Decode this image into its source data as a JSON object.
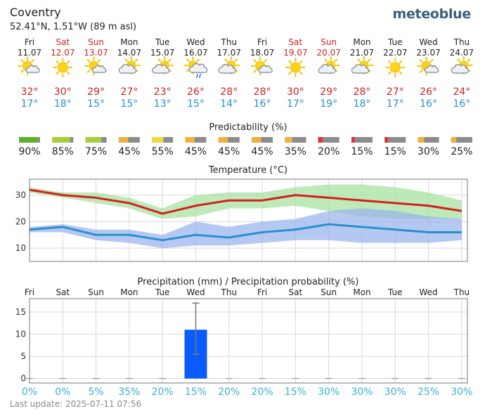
{
  "header": {
    "location": "Coventry",
    "coords": "52.41°N, 1.51°W (89 m asl)",
    "brand": "meteoblue"
  },
  "colors": {
    "weekday": "#222222",
    "weekend": "#cc2222",
    "tmax": "#d32020",
    "tmin": "#2a8fd0",
    "precip_bar": "#0a5cff",
    "prob_text": "#3aaed8"
  },
  "days": [
    {
      "name": "Fri",
      "date": "11.07",
      "weekend": false,
      "icon": "sun-cloud-icon",
      "tmax": "32°",
      "tmin": "17°"
    },
    {
      "name": "Sat",
      "date": "12.07",
      "weekend": true,
      "icon": "sun-icon",
      "tmax": "30°",
      "tmin": "18°"
    },
    {
      "name": "Sun",
      "date": "13.07",
      "weekend": true,
      "icon": "sun-cloud-icon",
      "tmax": "29°",
      "tmin": "15°"
    },
    {
      "name": "Mon",
      "date": "14.07",
      "weekend": false,
      "icon": "cloud-sun-icon",
      "tmax": "27°",
      "tmin": "15°"
    },
    {
      "name": "Tue",
      "date": "15.07",
      "weekend": false,
      "icon": "cloud-sun-icon",
      "tmax": "23°",
      "tmin": "13°"
    },
    {
      "name": "Wed",
      "date": "16.07",
      "weekend": false,
      "icon": "sun-cloud-rain-icon",
      "tmax": "26°",
      "tmin": "15°"
    },
    {
      "name": "Thu",
      "date": "17.07",
      "weekend": false,
      "icon": "cloud-sun-icon",
      "tmax": "28°",
      "tmin": "14°"
    },
    {
      "name": "Fri",
      "date": "18.07",
      "weekend": false,
      "icon": "sun-cloud-icon",
      "tmax": "28°",
      "tmin": "16°"
    },
    {
      "name": "Sat",
      "date": "19.07",
      "weekend": true,
      "icon": "sun-icon",
      "tmax": "30°",
      "tmin": "17°"
    },
    {
      "name": "Sun",
      "date": "20.07",
      "weekend": true,
      "icon": "cloud-sun-icon",
      "tmax": "29°",
      "tmin": "19°"
    },
    {
      "name": "Mon",
      "date": "21.07",
      "weekend": false,
      "icon": "cloud-sun-icon",
      "tmax": "28°",
      "tmin": "18°"
    },
    {
      "name": "Tue",
      "date": "22.07",
      "weekend": false,
      "icon": "sun-icon",
      "tmax": "27°",
      "tmin": "17°"
    },
    {
      "name": "Wed",
      "date": "23.07",
      "weekend": false,
      "icon": "sun-cloud-icon",
      "tmax": "26°",
      "tmin": "16°"
    },
    {
      "name": "Thu",
      "date": "24.07",
      "weekend": false,
      "icon": "cloud-sun-icon",
      "tmax": "24°",
      "tmin": "16°"
    }
  ],
  "predictability": {
    "title": "Predictability (%)",
    "values": [
      90,
      85,
      75,
      45,
      55,
      45,
      45,
      45,
      35,
      20,
      15,
      15,
      30,
      25
    ],
    "labels": [
      "90%",
      "85%",
      "75%",
      "45%",
      "55%",
      "45%",
      "45%",
      "45%",
      "35%",
      "20%",
      "15%",
      "15%",
      "30%",
      "25%"
    ],
    "colors": [
      "#5faf2a",
      "#a8cc3a",
      "#a8cc3a",
      "#f0b040",
      "#f0d840",
      "#f0b040",
      "#f0b040",
      "#f0b040",
      "#f0b040",
      "#e03030",
      "#e03030",
      "#e03030",
      "#f0b040",
      "#f0b040"
    ]
  },
  "chart_data": [
    {
      "type": "line",
      "title": "Temperature (°C)",
      "x": [
        "Fri",
        "Sat",
        "Sun",
        "Mon",
        "Tue",
        "Wed",
        "Thu",
        "Fri",
        "Sat",
        "Sun",
        "Mon",
        "Tue",
        "Wed",
        "Thu"
      ],
      "ylim": [
        5,
        36
      ],
      "yticks": [
        10,
        20,
        30
      ],
      "grid": true,
      "series": [
        {
          "values": [
            32,
            30,
            29,
            27,
            23,
            26,
            28,
            28,
            30,
            29,
            28,
            27,
            26,
            24
          ],
          "color": "#d32020"
        },
        {
          "values": [
            17,
            18,
            15,
            15,
            13,
            15,
            14,
            16,
            17,
            19,
            18,
            17,
            16,
            16
          ],
          "color": "#2a8fd0"
        }
      ],
      "bands": [
        {
          "color": "#a8e2a0",
          "upper": [
            33,
            31,
            31,
            29,
            25,
            30,
            31,
            31,
            33,
            34,
            34,
            33,
            31,
            28
          ],
          "lower": [
            31,
            29,
            27,
            25,
            21,
            22,
            25,
            25,
            26,
            24,
            22,
            21,
            21,
            21
          ]
        },
        {
          "color": "#9cb6ec",
          "upper": [
            18,
            19,
            17,
            17,
            15,
            20,
            18,
            20,
            21,
            24,
            25,
            24,
            22,
            21
          ],
          "lower": [
            16,
            16,
            13,
            12,
            10,
            11,
            11,
            12,
            13,
            13,
            12,
            12,
            12,
            13
          ]
        }
      ]
    },
    {
      "type": "bar",
      "title": "Precipitation (mm) / Precipitation probability (%)",
      "categories": [
        "Fri",
        "Sat",
        "Sun",
        "Mon",
        "Tue",
        "Wed",
        "Thu",
        "Fri",
        "Sat",
        "Sun",
        "Mon",
        "Tue",
        "Wed",
        "Thu"
      ],
      "values": [
        0,
        0,
        0,
        0,
        0,
        11,
        0,
        0,
        0,
        0,
        0,
        0,
        0,
        0
      ],
      "error_high": [
        0,
        0,
        0,
        0,
        0,
        17,
        0,
        0,
        0,
        0,
        0,
        0,
        0,
        0
      ],
      "error_low": [
        0,
        0,
        0,
        0,
        0,
        5.5,
        0,
        0,
        0,
        0,
        0,
        0,
        0,
        0
      ],
      "ylim": [
        -1,
        18
      ],
      "yticks": [
        0,
        5,
        10,
        15
      ],
      "grid": true,
      "probability": [
        "0%",
        "0%",
        "5%",
        "35%",
        "20%",
        "15%",
        "20%",
        "20%",
        "15%",
        "30%",
        "30%",
        "30%",
        "25%",
        "30%"
      ]
    }
  ],
  "footer": {
    "last_update": "Last update: 2025-07-11 07:56"
  }
}
